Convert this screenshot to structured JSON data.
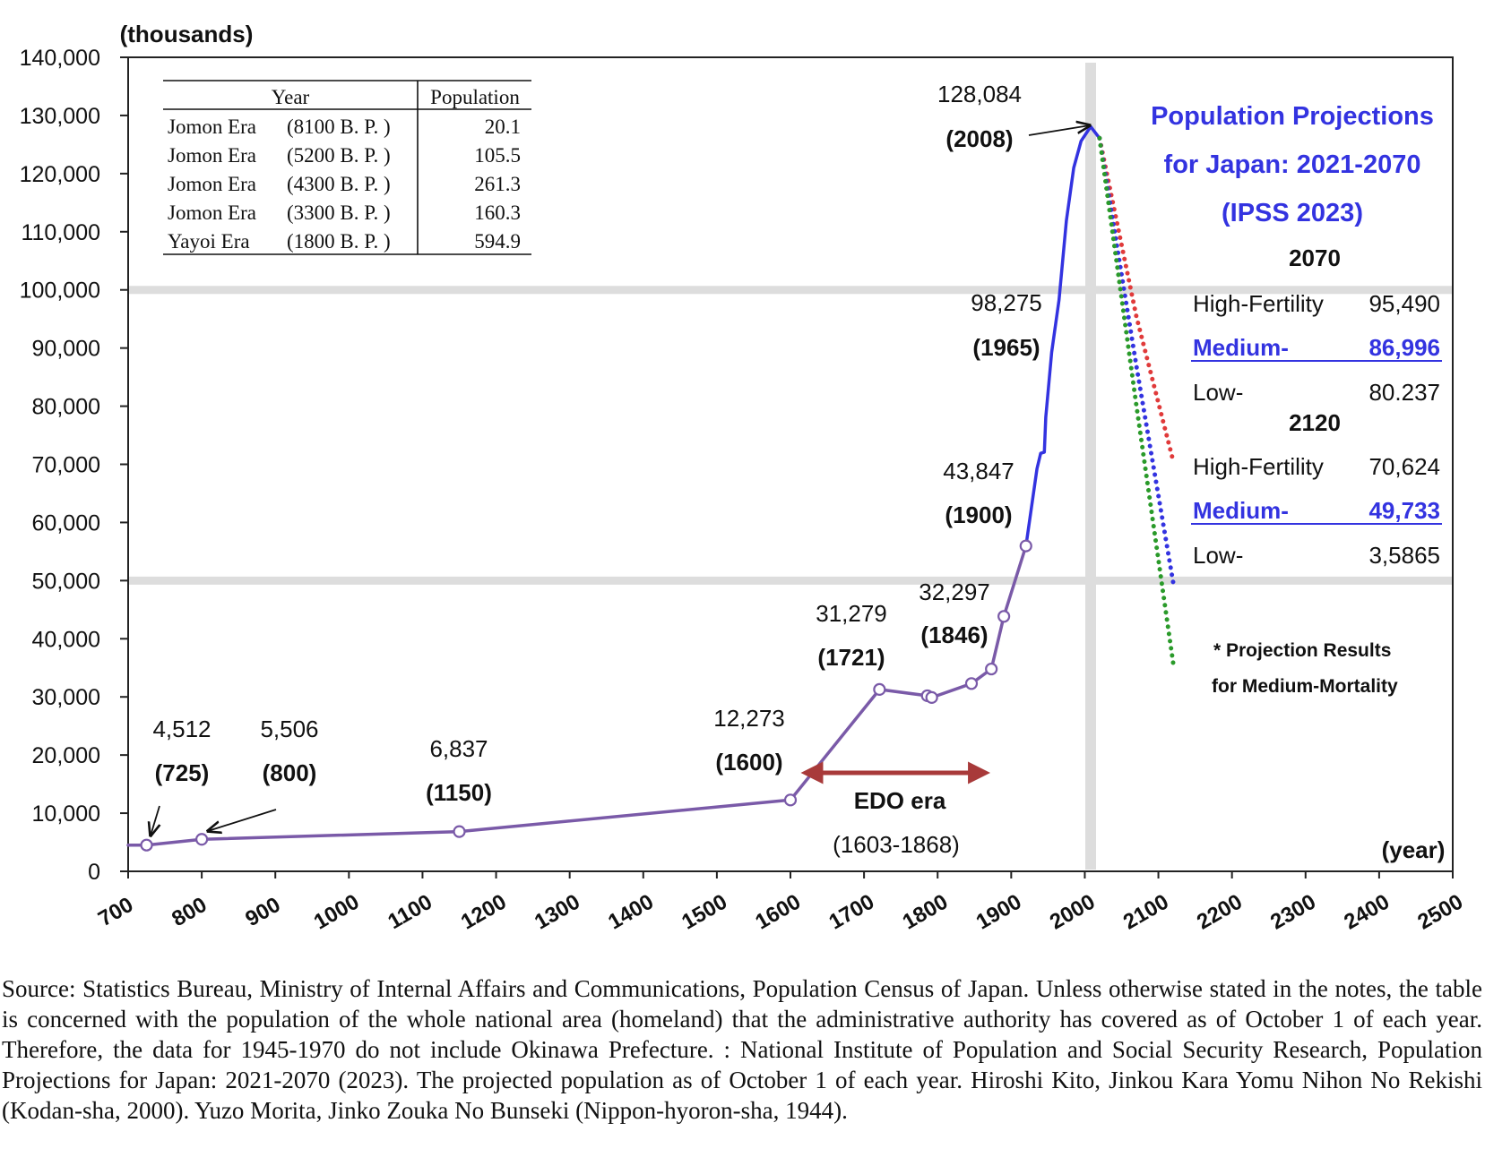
{
  "chart_data": {
    "type": "line",
    "xlabel": "(year)",
    "ylabel": "(thousands)",
    "xlim": [
      700,
      2500
    ],
    "ylim": [
      0,
      140000
    ],
    "x_ticks": [
      "700",
      "800",
      "900",
      "1000",
      "1100",
      "1200",
      "1300",
      "1400",
      "1500",
      "1600",
      "1700",
      "1800",
      "1900",
      "2000",
      "2100",
      "2200",
      "2300",
      "2400",
      "2500"
    ],
    "y_ticks": [
      "0",
      "10,000",
      "20,000",
      "30,000",
      "40,000",
      "50,000",
      "60,000",
      "70,000",
      "80,000",
      "90,000",
      "100,000",
      "110,000",
      "120,000",
      "130,000",
      "140,000"
    ],
    "grid_horizontal_at": [
      50000,
      100000
    ],
    "highlight_year": 2008,
    "series": [
      {
        "key": "historical",
        "color": "#7a5aa8",
        "points": [
          [
            700,
            4500
          ],
          [
            725,
            4512
          ],
          [
            800,
            5506
          ],
          [
            1150,
            6837
          ],
          [
            1600,
            12273
          ],
          [
            1721,
            31279
          ],
          [
            1786,
            30200
          ],
          [
            1792,
            29900
          ],
          [
            1846,
            32297
          ],
          [
            1873,
            34800
          ],
          [
            1890,
            43847
          ],
          [
            1920,
            55963
          ]
        ]
      },
      {
        "key": "census",
        "color": "#3333e0",
        "points": [
          [
            1920,
            55963
          ],
          [
            1935,
            69250
          ],
          [
            1940,
            71900
          ],
          [
            1945,
            72100
          ],
          [
            1947,
            78100
          ],
          [
            1955,
            89300
          ],
          [
            1965,
            98275
          ],
          [
            1975,
            111900
          ],
          [
            1985,
            121000
          ],
          [
            1995,
            125600
          ],
          [
            2008,
            128084
          ],
          [
            2020,
            126100
          ]
        ]
      },
      {
        "key": "high-fertility",
        "color": "#e03a3a",
        "dotted": true,
        "points": [
          [
            2020,
            126100
          ],
          [
            2070,
            95490
          ],
          [
            2120,
            70624
          ]
        ]
      },
      {
        "key": "medium",
        "color": "#3333e0",
        "dotted": true,
        "points": [
          [
            2020,
            126100
          ],
          [
            2070,
            86996
          ],
          [
            2120,
            49733
          ]
        ]
      },
      {
        "key": "low",
        "color": "#2a9a2a",
        "dotted": true,
        "points": [
          [
            2020,
            126100
          ],
          [
            2070,
            80237
          ],
          [
            2120,
            35865
          ]
        ]
      }
    ],
    "marked_points": [
      [
        725,
        4512
      ],
      [
        800,
        5506
      ],
      [
        1150,
        6837
      ],
      [
        1600,
        12273
      ],
      [
        1721,
        31279
      ],
      [
        1786,
        30200
      ],
      [
        1792,
        29900
      ],
      [
        1846,
        32297
      ],
      [
        1873,
        34800
      ],
      [
        1890,
        43847
      ],
      [
        1920,
        55963
      ]
    ],
    "point_labels": [
      {
        "value": "4,512",
        "year": "(725)",
        "x": 725
      },
      {
        "value": "5,506",
        "year": "(800)",
        "x": 800
      },
      {
        "value": "6,837",
        "year": "(1150)",
        "x": 1150
      },
      {
        "value": "12,273",
        "year": "(1600)",
        "x": 1600
      },
      {
        "value": "31,279",
        "year": "(1721)",
        "x": 1721
      },
      {
        "value": "32,297",
        "year": "(1846)",
        "x": 1846
      },
      {
        "value": "43,847",
        "year": "(1900)",
        "x": 1900
      },
      {
        "value": "98,275",
        "year": "(1965)",
        "x": 1965
      },
      {
        "value": "128,084",
        "year": "(2008)",
        "x": 2008
      }
    ],
    "edo": {
      "label": "EDO era",
      "range": "(1603-1868)",
      "from": 1603,
      "to": 1868
    },
    "projection": {
      "title_lines": [
        "Population Projections",
        "for Japan: 2021-2070",
        "(IPSS 2023)"
      ],
      "groups": [
        {
          "year": "2070",
          "rows": [
            {
              "name": "High-Fertility",
              "value": "95,490",
              "highlight": false
            },
            {
              "name": "Medium-",
              "value": "86,996",
              "highlight": true
            },
            {
              "name": "Low-",
              "value": "80.237",
              "highlight": false
            }
          ]
        },
        {
          "year": "2120",
          "rows": [
            {
              "name": "High-Fertility",
              "value": "70,624",
              "highlight": false
            },
            {
              "name": "Medium-",
              "value": "49,733",
              "highlight": true
            },
            {
              "name": "Low-",
              "value": "3,5865",
              "highlight": false
            }
          ]
        }
      ],
      "note_lines": [
        "* Projection Results",
        "for Medium-Mortality"
      ]
    },
    "ancient_table": {
      "headers": [
        "Year",
        "Population"
      ],
      "rows": [
        {
          "era": "Jomon Era",
          "period": "(8100 B. P. )",
          "population": "20.1"
        },
        {
          "era": "Jomon Era",
          "period": "(5200 B. P. )",
          "population": "105.5"
        },
        {
          "era": "Jomon Era",
          "period": "(4300 B. P. )",
          "population": "261.3"
        },
        {
          "era": "Jomon Era",
          "period": "(3300 B. P. )",
          "population": "160.3"
        },
        {
          "era": "Yayoi Era",
          "period": "(1800 B. P. )",
          "population": "594.9"
        }
      ]
    },
    "colors": {
      "frame": "#222222",
      "grid": "#dddddd",
      "projection_title": "#3333e0",
      "edo_arrow": "#a83a3a",
      "text": "#111111"
    }
  },
  "source_note": "Source: Statistics Bureau, Ministry of Internal Affairs and Communications, Population Census of Japan. Unless otherwise stated in the notes, the table is concerned with the population of the whole national area (homeland) that the administrative authority has covered as of October 1 of each year. Therefore, the data for 1945-1970 do not include Okinawa Prefecture. : National Institute of Population and Social Security Research, Population Projections for Japan: 2021-2070 (2023). The projected population as of October 1 of each year. Hiroshi Kito, Jinkou Kara Yomu Nihon No Rekishi (Kodan-sha, 2000). Yuzo Morita, Jinko Zouka No Bunseki (Nippon-hyoron-sha, 1944)."
}
